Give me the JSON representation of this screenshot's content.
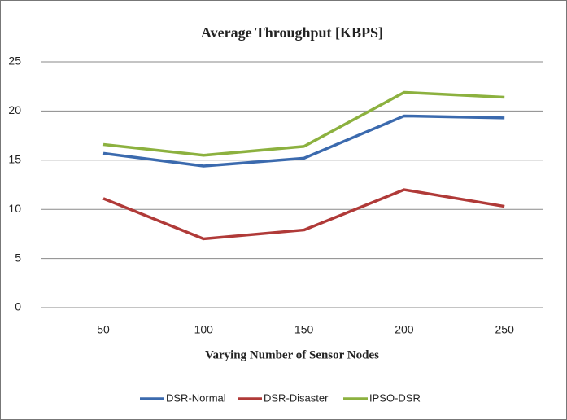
{
  "chart_data": {
    "type": "line",
    "title": "Average Throughput [KBPS]",
    "x_label": "Varying Number of Sensor Nodes",
    "categories": [
      "50",
      "100",
      "150",
      "200",
      "250"
    ],
    "series": [
      {
        "name": "DSR-Normal",
        "color": "#3b6aae",
        "values": [
          15.7,
          14.4,
          15.2,
          19.5,
          19.3
        ]
      },
      {
        "name": "DSR-Disaster",
        "color": "#b03a38",
        "values": [
          11.1,
          7.0,
          7.9,
          12.0,
          10.3
        ]
      },
      {
        "name": "IPSO-DSR",
        "color": "#8cb13f",
        "values": [
          16.6,
          15.5,
          16.4,
          21.9,
          21.4
        ]
      }
    ],
    "ylim": [
      0,
      25
    ],
    "yticks": [
      0,
      5,
      10,
      15,
      20,
      25
    ],
    "grid": true,
    "legend": "bottom"
  }
}
